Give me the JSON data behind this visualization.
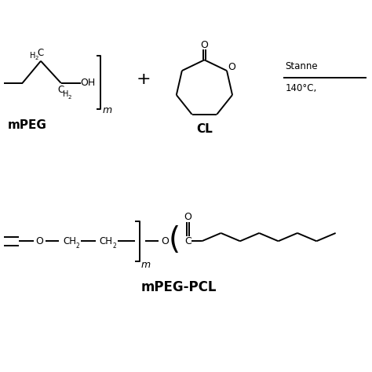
{
  "background_color": "#ffffff",
  "line_color": "#000000",
  "text_color": "#000000",
  "label_mPEG": "mPEG",
  "label_CL": "CL",
  "label_product": "mPEG-PCL",
  "label_stannous": "Stanne",
  "label_temp": "140°C,",
  "font_size_label": 11,
  "font_size_atom": 9,
  "font_size_sub": 6
}
